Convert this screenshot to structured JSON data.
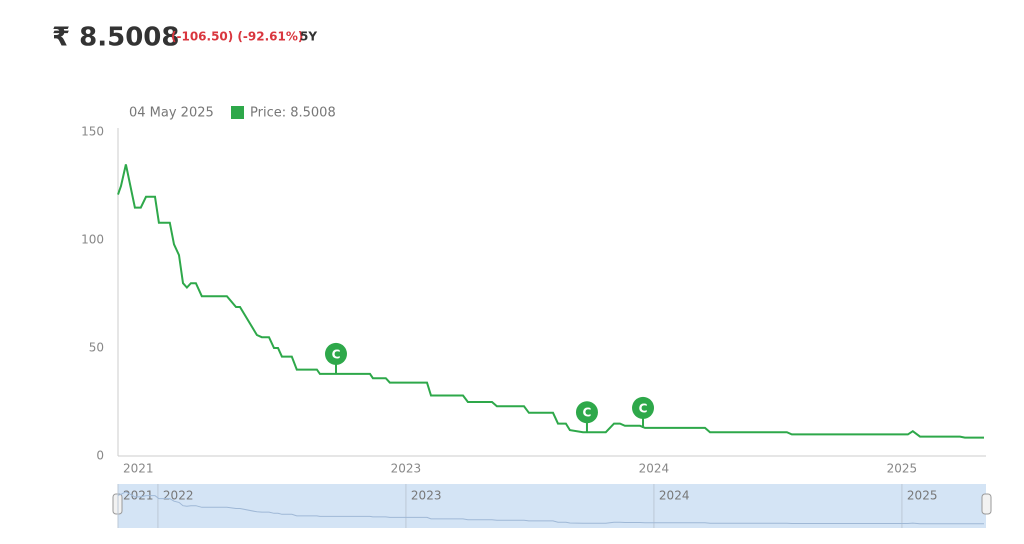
{
  "chart_data": {
    "type": "line",
    "title": "₹ 8.5008",
    "subtitle": "(-106.50) (-92.61%)",
    "period": "5Y",
    "tooltip_date": "04 May 2025",
    "tooltip_text": "Price: 8.5008",
    "x": [
      2021.839,
      2021.851,
      2021.871,
      2021.907,
      2021.931,
      2021.952,
      2021.988,
      2022.004,
      2022.048,
      2022.065,
      2022.085,
      2022.101,
      2022.117,
      2022.133,
      2022.153,
      2022.177,
      2022.278,
      2022.315,
      2022.331,
      2022.399,
      2022.419,
      2022.448,
      2022.468,
      2022.484,
      2022.5,
      2022.54,
      2022.56,
      2022.641,
      2022.653,
      2022.855,
      2022.867,
      2022.919,
      2022.935,
      2023.085,
      2023.101,
      2023.23,
      2023.25,
      2023.347,
      2023.367,
      2023.476,
      2023.496,
      2023.593,
      2023.613,
      2023.645,
      2023.661,
      2023.714,
      2023.806,
      2023.839,
      2023.863,
      2023.883,
      2023.944,
      2023.964,
      2024.206,
      2024.226,
      2024.536,
      2024.556,
      2025.024,
      2025.044,
      2025.073,
      2025.234,
      2025.254,
      2025.331
    ],
    "series": [
      {
        "name": "Price",
        "color": "#2ea84a",
        "values": [
          121,
          125,
          135,
          115,
          115,
          120,
          120,
          108,
          108,
          98,
          93,
          80,
          78,
          80,
          80,
          74,
          74,
          69,
          69,
          56,
          55,
          55,
          50,
          50,
          46,
          46,
          40,
          40,
          38,
          38,
          36,
          36,
          34,
          34,
          28,
          28,
          25,
          25,
          23,
          23,
          20,
          20,
          15,
          15,
          12,
          11,
          11,
          15,
          15,
          14,
          14,
          13,
          13,
          11,
          11,
          10,
          10,
          11.5,
          9,
          9,
          8.5,
          8.5
        ]
      }
    ],
    "annotations": [
      {
        "x": 2022.718,
        "value": 38,
        "label": "C"
      },
      {
        "x": 2023.73,
        "value": 11,
        "label": "C"
      },
      {
        "x": 2023.956,
        "value": 13,
        "label": "C"
      }
    ],
    "xlim": [
      2021.839,
      2025.339
    ],
    "xticks": [
      {
        "value": 2021.839,
        "label": "2021"
      },
      2023,
      2024,
      2025
    ],
    "navigator_ticks": [
      {
        "value": 2021.839,
        "label": "2021"
      },
      2022,
      2023,
      2024,
      2025
    ],
    "ylim": [
      0,
      150
    ],
    "yticks": [
      0,
      50,
      100,
      150
    ],
    "navigator_color": "#d4e4f5"
  }
}
